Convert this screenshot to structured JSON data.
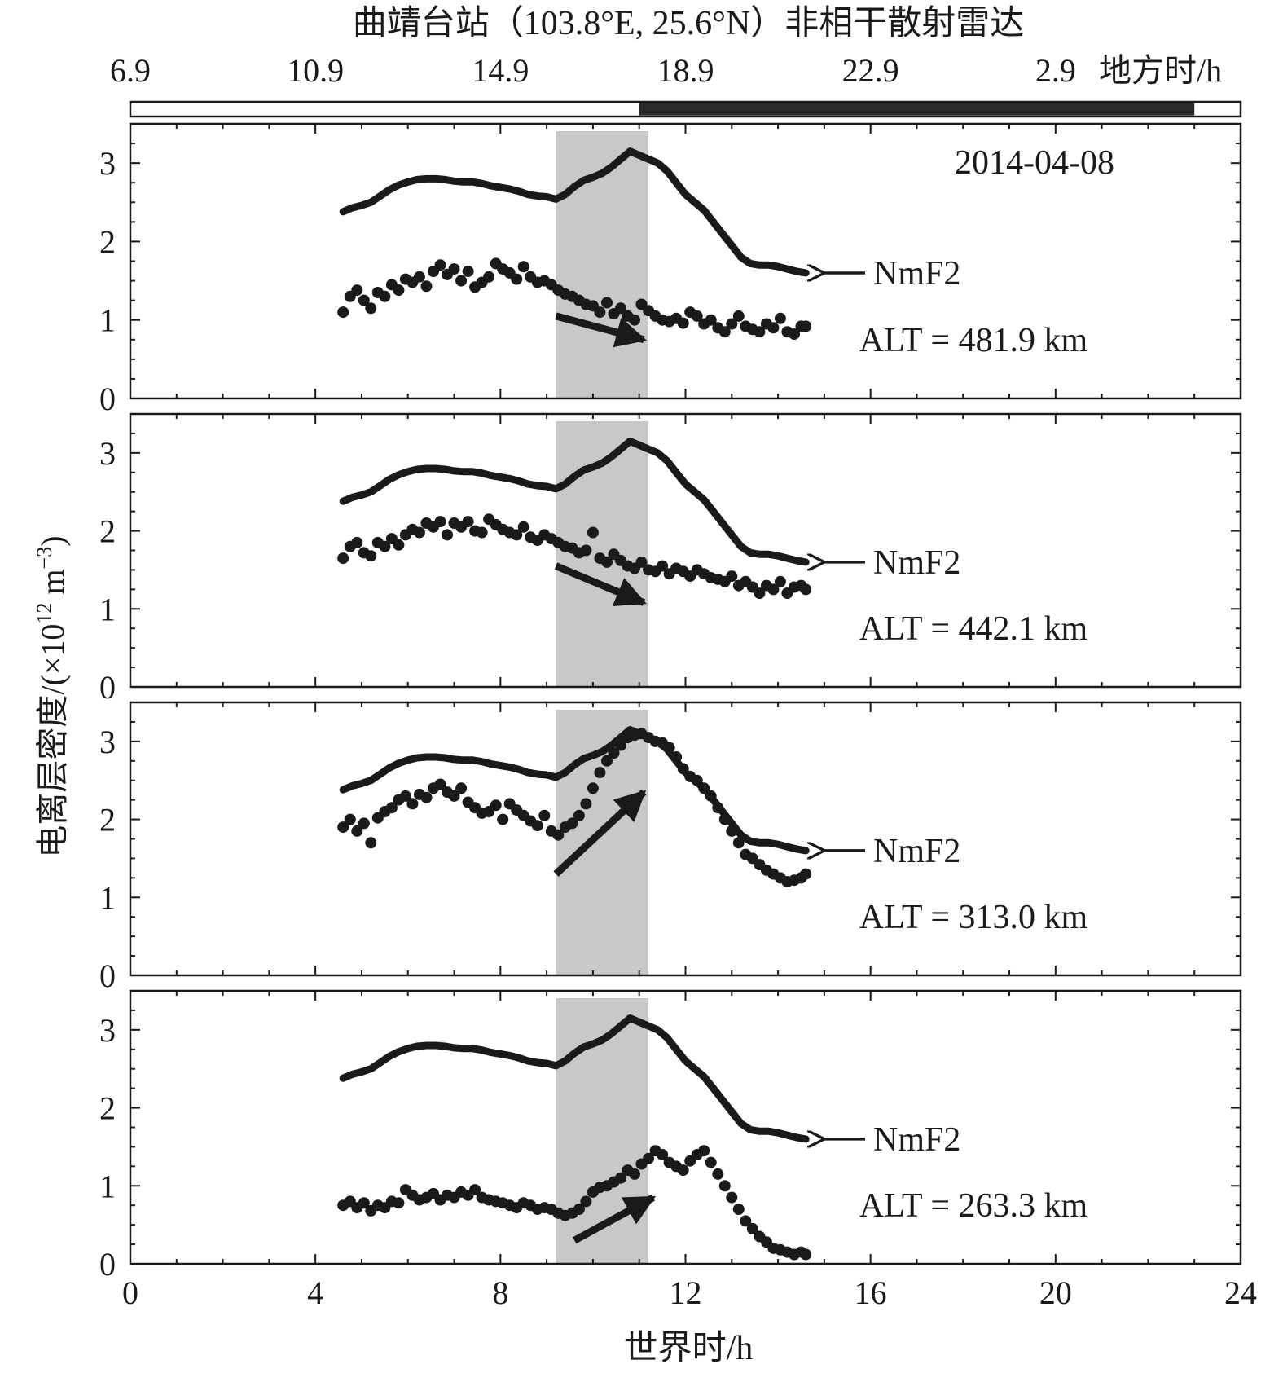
{
  "chart_data": {
    "type": "scatter",
    "title": "曲靖台站（103.8°E, 25.6°N）非相干散射雷达",
    "date": "2014-04-08",
    "xlabel": "世界时/h",
    "ylabel": "电离层密度/(×10",
    "ylabel_exp": "12",
    "ylabel_unit": " m",
    "ylabel_unit_exp": "−3",
    "ylabel_tail": ")",
    "xlim": [
      0,
      24
    ],
    "ylim": [
      0,
      3.5
    ],
    "x_ticks": [
      "0",
      "4",
      "8",
      "12",
      "16",
      "20",
      "24"
    ],
    "y_ticks": [
      "0",
      "1",
      "2",
      "3"
    ],
    "local_time_axis": {
      "ticks": [
        "6.9",
        "10.9",
        "14.9",
        "18.9",
        "22.9",
        "2.9"
      ],
      "suffix": "地方时/h",
      "night_ut": [
        11,
        23
      ]
    },
    "shaded_ut": [
      9.2,
      11.2
    ],
    "nmf2": {
      "label": "NmF2",
      "x": [
        4.6,
        4.8,
        5.0,
        5.2,
        5.4,
        5.6,
        5.8,
        6.0,
        6.2,
        6.4,
        6.6,
        6.8,
        7.0,
        7.2,
        7.4,
        7.6,
        7.8,
        8.0,
        8.2,
        8.4,
        8.6,
        8.8,
        9.0,
        9.2,
        9.4,
        9.6,
        9.8,
        10.0,
        10.2,
        10.4,
        10.6,
        10.8,
        11.0,
        11.2,
        11.4,
        11.6,
        11.8,
        12.0,
        12.2,
        12.4,
        12.6,
        12.8,
        13.0,
        13.2,
        13.4,
        13.6,
        13.8,
        14.0,
        14.2,
        14.4,
        14.6
      ],
      "y": [
        2.38,
        2.43,
        2.46,
        2.5,
        2.58,
        2.66,
        2.72,
        2.76,
        2.79,
        2.8,
        2.8,
        2.79,
        2.77,
        2.76,
        2.76,
        2.74,
        2.71,
        2.69,
        2.67,
        2.64,
        2.6,
        2.58,
        2.57,
        2.54,
        2.6,
        2.7,
        2.78,
        2.82,
        2.87,
        2.95,
        3.05,
        3.15,
        3.1,
        3.05,
        3.0,
        2.9,
        2.75,
        2.6,
        2.5,
        2.4,
        2.25,
        2.1,
        1.95,
        1.8,
        1.72,
        1.7,
        1.7,
        1.68,
        1.65,
        1.62,
        1.6
      ]
    },
    "panels": [
      {
        "alt": "ALT = 481.9 km",
        "x": [
          4.6,
          4.75,
          4.9,
          5.05,
          5.2,
          5.35,
          5.5,
          5.65,
          5.8,
          5.95,
          6.1,
          6.25,
          6.4,
          6.55,
          6.7,
          6.85,
          7.0,
          7.15,
          7.3,
          7.45,
          7.6,
          7.75,
          7.9,
          8.05,
          8.2,
          8.35,
          8.5,
          8.65,
          8.8,
          8.95,
          9.1,
          9.25,
          9.4,
          9.55,
          9.7,
          9.85,
          10.0,
          10.15,
          10.3,
          10.45,
          10.6,
          10.75,
          10.9,
          11.05,
          11.2,
          11.35,
          11.5,
          11.65,
          11.8,
          11.95,
          12.1,
          12.25,
          12.4,
          12.55,
          12.7,
          12.85,
          13.0,
          13.15,
          13.3,
          13.45,
          13.6,
          13.75,
          13.9,
          14.05,
          14.2,
          14.35,
          14.5,
          14.6
        ],
        "y": [
          1.1,
          1.3,
          1.38,
          1.25,
          1.15,
          1.35,
          1.3,
          1.45,
          1.38,
          1.52,
          1.48,
          1.55,
          1.43,
          1.62,
          1.7,
          1.58,
          1.65,
          1.5,
          1.62,
          1.42,
          1.48,
          1.55,
          1.72,
          1.65,
          1.6,
          1.52,
          1.68,
          1.55,
          1.48,
          1.5,
          1.45,
          1.38,
          1.33,
          1.3,
          1.25,
          1.2,
          1.18,
          1.1,
          1.22,
          1.08,
          1.15,
          1.05,
          1.0,
          1.2,
          1.12,
          1.05,
          1.0,
          0.98,
          1.02,
          0.96,
          1.1,
          1.05,
          0.95,
          1.0,
          0.9,
          0.85,
          0.95,
          1.05,
          0.92,
          0.88,
          0.85,
          0.95,
          0.9,
          1.02,
          0.85,
          0.82,
          0.92,
          0.92
        ],
        "arrow": [
          [
            9.2,
            1.05
          ],
          [
            11.1,
            0.75
          ]
        ]
      },
      {
        "alt": "ALT = 442.1 km",
        "x": [
          4.6,
          4.75,
          4.9,
          5.05,
          5.2,
          5.35,
          5.5,
          5.65,
          5.8,
          5.95,
          6.1,
          6.25,
          6.4,
          6.55,
          6.7,
          6.85,
          7.0,
          7.15,
          7.3,
          7.45,
          7.6,
          7.75,
          7.9,
          8.05,
          8.2,
          8.35,
          8.5,
          8.65,
          8.8,
          8.95,
          9.1,
          9.25,
          9.4,
          9.55,
          9.7,
          9.85,
          10.0,
          10.15,
          10.3,
          10.45,
          10.6,
          10.75,
          10.9,
          11.05,
          11.2,
          11.35,
          11.5,
          11.65,
          11.8,
          11.95,
          12.1,
          12.25,
          12.4,
          12.55,
          12.7,
          12.85,
          13.0,
          13.15,
          13.3,
          13.45,
          13.6,
          13.75,
          13.9,
          14.05,
          14.2,
          14.35,
          14.5,
          14.6
        ],
        "y": [
          1.65,
          1.8,
          1.85,
          1.72,
          1.68,
          1.85,
          1.8,
          1.9,
          1.82,
          1.95,
          2.02,
          1.98,
          2.1,
          2.05,
          2.12,
          1.95,
          2.1,
          2.05,
          2.12,
          2.0,
          1.98,
          2.15,
          2.08,
          2.02,
          1.98,
          1.95,
          2.05,
          1.92,
          1.88,
          1.95,
          1.9,
          1.85,
          1.8,
          1.78,
          1.72,
          1.75,
          1.98,
          1.65,
          1.6,
          1.7,
          1.62,
          1.55,
          1.52,
          1.6,
          1.5,
          1.48,
          1.55,
          1.45,
          1.52,
          1.48,
          1.42,
          1.5,
          1.45,
          1.4,
          1.38,
          1.35,
          1.42,
          1.3,
          1.35,
          1.28,
          1.2,
          1.3,
          1.25,
          1.35,
          1.2,
          1.28,
          1.3,
          1.25
        ],
        "arrow": [
          [
            9.2,
            1.55
          ],
          [
            11.1,
            1.08
          ]
        ]
      },
      {
        "alt": "ALT = 313.0 km",
        "x": [
          4.6,
          4.75,
          4.9,
          5.05,
          5.2,
          5.35,
          5.5,
          5.65,
          5.8,
          5.95,
          6.1,
          6.25,
          6.4,
          6.55,
          6.7,
          6.85,
          7.0,
          7.15,
          7.3,
          7.45,
          7.6,
          7.75,
          7.9,
          8.05,
          8.2,
          8.35,
          8.5,
          8.65,
          8.8,
          8.95,
          9.1,
          9.25,
          9.4,
          9.55,
          9.7,
          9.85,
          10.0,
          10.15,
          10.3,
          10.45,
          10.6,
          10.75,
          10.9,
          11.05,
          11.2,
          11.35,
          11.5,
          11.65,
          11.8,
          11.95,
          12.1,
          12.25,
          12.4,
          12.55,
          12.7,
          12.85,
          13.0,
          13.15,
          13.3,
          13.45,
          13.6,
          13.75,
          13.9,
          14.05,
          14.2,
          14.35,
          14.5,
          14.6
        ],
        "y": [
          1.9,
          2.0,
          1.85,
          1.95,
          1.7,
          2.02,
          2.1,
          2.15,
          2.25,
          2.3,
          2.2,
          2.32,
          2.28,
          2.4,
          2.45,
          2.35,
          2.3,
          2.4,
          2.22,
          2.15,
          2.08,
          2.1,
          2.18,
          2.0,
          2.2,
          2.12,
          2.05,
          1.98,
          1.92,
          2.05,
          1.85,
          1.8,
          1.9,
          1.95,
          2.05,
          2.2,
          2.4,
          2.6,
          2.75,
          2.85,
          2.95,
          3.05,
          3.08,
          3.1,
          3.05,
          3.0,
          2.98,
          2.92,
          2.8,
          2.65,
          2.55,
          2.5,
          2.4,
          2.3,
          2.15,
          2.0,
          1.85,
          1.7,
          1.55,
          1.5,
          1.42,
          1.35,
          1.3,
          1.25,
          1.2,
          1.22,
          1.25,
          1.3
        ],
        "arrow": [
          [
            9.2,
            1.3
          ],
          [
            11.1,
            2.35
          ]
        ]
      },
      {
        "alt": "ALT = 263.3 km",
        "x": [
          4.6,
          4.75,
          4.9,
          5.05,
          5.2,
          5.35,
          5.5,
          5.65,
          5.8,
          5.95,
          6.1,
          6.25,
          6.4,
          6.55,
          6.7,
          6.85,
          7.0,
          7.15,
          7.3,
          7.45,
          7.6,
          7.75,
          7.9,
          8.05,
          8.2,
          8.35,
          8.5,
          8.65,
          8.8,
          8.95,
          9.1,
          9.25,
          9.4,
          9.55,
          9.7,
          9.85,
          10.0,
          10.15,
          10.3,
          10.45,
          10.6,
          10.75,
          10.9,
          11.05,
          11.2,
          11.35,
          11.5,
          11.65,
          11.8,
          11.95,
          12.1,
          12.25,
          12.4,
          12.55,
          12.7,
          12.85,
          13.0,
          13.15,
          13.3,
          13.45,
          13.6,
          13.75,
          13.9,
          14.05,
          14.2,
          14.35,
          14.5,
          14.6
        ],
        "y": [
          0.75,
          0.8,
          0.72,
          0.78,
          0.68,
          0.75,
          0.72,
          0.8,
          0.78,
          0.95,
          0.88,
          0.82,
          0.85,
          0.9,
          0.82,
          0.88,
          0.85,
          0.92,
          0.88,
          0.95,
          0.85,
          0.82,
          0.8,
          0.78,
          0.75,
          0.72,
          0.78,
          0.75,
          0.7,
          0.72,
          0.7,
          0.65,
          0.62,
          0.65,
          0.7,
          0.8,
          0.92,
          0.98,
          1.0,
          1.05,
          1.1,
          1.2,
          1.15,
          1.28,
          1.35,
          1.45,
          1.4,
          1.3,
          1.25,
          1.2,
          1.32,
          1.4,
          1.45,
          1.3,
          1.15,
          1.0,
          0.85,
          0.7,
          0.55,
          0.45,
          0.35,
          0.28,
          0.2,
          0.18,
          0.15,
          0.12,
          0.15,
          0.12
        ],
        "arrow": [
          [
            9.6,
            0.3
          ],
          [
            11.3,
            0.85
          ]
        ]
      }
    ]
  }
}
